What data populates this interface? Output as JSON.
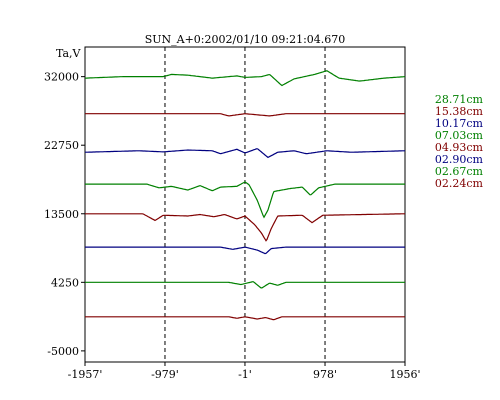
{
  "chart_data": {
    "type": "line",
    "title": "SUN_A+0:2002/01/10 09:21:04.670",
    "ylabel": "Ta,V",
    "xlim": [
      -1957,
      1956
    ],
    "ylim": [
      -6500,
      36000
    ],
    "x_ticks": [
      -1957,
      -979,
      -1,
      978,
      1956
    ],
    "x_tick_labels": [
      "-1957'",
      "-979'",
      "-1'",
      "978'",
      "1956'"
    ],
    "y_ticks": [
      -5000,
      4250,
      13500,
      22750,
      32000
    ],
    "y_tick_labels": [
      "-5000",
      "4250",
      "13500",
      "22750",
      "32000"
    ],
    "vlines": [
      -979,
      -1,
      978
    ],
    "grid": false,
    "legend_position": "right",
    "series": [
      {
        "name": "28.71cm",
        "color": "#008000",
        "baseline": 32000,
        "features": [
          [
            -1957,
            -200
          ],
          [
            -1500,
            0
          ],
          [
            -1000,
            0
          ],
          [
            -900,
            300
          ],
          [
            -700,
            200
          ],
          [
            -400,
            -200
          ],
          [
            -100,
            100
          ],
          [
            0,
            -100
          ],
          [
            200,
            0
          ],
          [
            300,
            300
          ],
          [
            450,
            -1200
          ],
          [
            600,
            -300
          ],
          [
            850,
            300
          ],
          [
            1000,
            800
          ],
          [
            1150,
            -200
          ],
          [
            1400,
            -600
          ],
          [
            1700,
            -200
          ],
          [
            1956,
            0
          ]
        ]
      },
      {
        "name": "15.38cm",
        "color": "#800000",
        "baseline": 27000,
        "features": [
          [
            -1957,
            0
          ],
          [
            -300,
            0
          ],
          [
            -200,
            -300
          ],
          [
            0,
            0
          ],
          [
            300,
            -300
          ],
          [
            500,
            0
          ],
          [
            1956,
            0
          ]
        ]
      },
      {
        "name": "10.17cm",
        "color": "#000080",
        "baseline": 22000,
        "features": [
          [
            -1957,
            -200
          ],
          [
            -1300,
            0
          ],
          [
            -1000,
            -150
          ],
          [
            -700,
            100
          ],
          [
            -400,
            0
          ],
          [
            -300,
            -400
          ],
          [
            -100,
            200
          ],
          [
            0,
            -300
          ],
          [
            150,
            300
          ],
          [
            280,
            -900
          ],
          [
            400,
            -200
          ],
          [
            600,
            0
          ],
          [
            750,
            -400
          ],
          [
            1000,
            0
          ],
          [
            1300,
            -200
          ],
          [
            1956,
            0
          ]
        ]
      },
      {
        "name": "07.03cm",
        "color": "#008000",
        "baseline": 17500,
        "features": [
          [
            -1957,
            0
          ],
          [
            -1200,
            0
          ],
          [
            -1050,
            -500
          ],
          [
            -900,
            -300
          ],
          [
            -700,
            -800
          ],
          [
            -550,
            -200
          ],
          [
            -400,
            -900
          ],
          [
            -300,
            -400
          ],
          [
            -100,
            -300
          ],
          [
            0,
            300
          ],
          [
            50,
            -100
          ],
          [
            150,
            -2200
          ],
          [
            230,
            -4500
          ],
          [
            280,
            -3500
          ],
          [
            350,
            -1000
          ],
          [
            550,
            -600
          ],
          [
            700,
            -400
          ],
          [
            800,
            -1500
          ],
          [
            900,
            -500
          ],
          [
            1100,
            0
          ],
          [
            1956,
            0
          ]
        ]
      },
      {
        "name": "04.93cm",
        "color": "#800000",
        "baseline": 13500,
        "features": [
          [
            -1957,
            0
          ],
          [
            -1250,
            0
          ],
          [
            -1100,
            -900
          ],
          [
            -1000,
            -200
          ],
          [
            -700,
            -300
          ],
          [
            -550,
            -100
          ],
          [
            -380,
            -400
          ],
          [
            -250,
            -100
          ],
          [
            -100,
            -700
          ],
          [
            0,
            -300
          ],
          [
            120,
            -1500
          ],
          [
            200,
            -2600
          ],
          [
            260,
            -3700
          ],
          [
            320,
            -2000
          ],
          [
            400,
            -300
          ],
          [
            700,
            -200
          ],
          [
            820,
            -1200
          ],
          [
            950,
            -200
          ],
          [
            1956,
            0
          ]
        ]
      },
      {
        "name": "02.90cm",
        "color": "#000080",
        "baseline": 9000,
        "features": [
          [
            -1957,
            0
          ],
          [
            -300,
            0
          ],
          [
            -150,
            -300
          ],
          [
            0,
            0
          ],
          [
            150,
            -400
          ],
          [
            250,
            -900
          ],
          [
            320,
            -200
          ],
          [
            500,
            0
          ],
          [
            1956,
            0
          ]
        ]
      },
      {
        "name": "02.67cm",
        "color": "#008000",
        "baseline": 4250,
        "features": [
          [
            -1957,
            0
          ],
          [
            -200,
            0
          ],
          [
            -50,
            -300
          ],
          [
            100,
            100
          ],
          [
            200,
            -800
          ],
          [
            300,
            -100
          ],
          [
            400,
            -400
          ],
          [
            500,
            0
          ],
          [
            1956,
            0
          ]
        ]
      },
      {
        "name": "02.24cm",
        "color": "#800000",
        "baseline": -400,
        "features": [
          [
            -1957,
            0
          ],
          [
            -200,
            0
          ],
          [
            -100,
            -200
          ],
          [
            0,
            0
          ],
          [
            150,
            -300
          ],
          [
            250,
            -100
          ],
          [
            350,
            -400
          ],
          [
            450,
            0
          ],
          [
            1956,
            0
          ]
        ]
      }
    ]
  }
}
